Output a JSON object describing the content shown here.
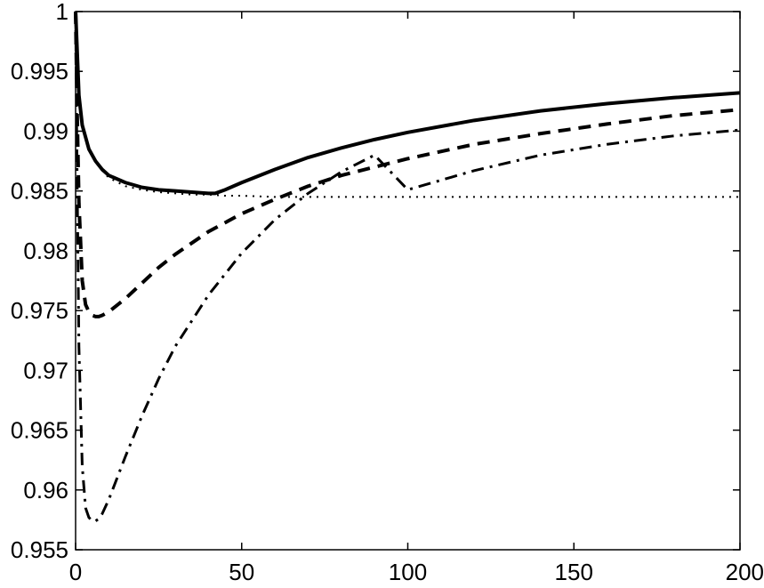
{
  "chart_data": {
    "type": "line",
    "title": "",
    "xlabel": "",
    "ylabel": "",
    "xlim": [
      0,
      200
    ],
    "ylim": [
      0.955,
      1.0
    ],
    "grid": false,
    "legend": "none",
    "x_ticks": [
      0,
      50,
      100,
      150,
      200
    ],
    "x_tick_labels": [
      "0",
      "50",
      "100",
      "150",
      "200"
    ],
    "y_ticks": [
      0.955,
      0.96,
      0.965,
      0.97,
      0.975,
      0.98,
      0.985,
      0.99,
      0.995,
      1.0
    ],
    "y_tick_labels": [
      "0.955",
      "0.96",
      "0.965",
      "0.97",
      "0.975",
      "0.98",
      "0.985",
      "0.99",
      "0.995",
      "1"
    ],
    "series": [
      {
        "style": "solid",
        "color": "#000000",
        "x": [
          0,
          1,
          2,
          4,
          6,
          8,
          10,
          15,
          20,
          25,
          30,
          35,
          40,
          42,
          45,
          50,
          60,
          70,
          80,
          90,
          100,
          120,
          140,
          160,
          180,
          200
        ],
        "y": [
          1.0,
          0.993,
          0.9905,
          0.9885,
          0.9875,
          0.9868,
          0.9863,
          0.9857,
          0.9853,
          0.9851,
          0.985,
          0.9849,
          0.9848,
          0.9848,
          0.9851,
          0.9857,
          0.9868,
          0.9878,
          0.9886,
          0.9893,
          0.9899,
          0.9909,
          0.9917,
          0.9923,
          0.9928,
          0.9932
        ]
      },
      {
        "style": "dashed",
        "color": "#000000",
        "x": [
          0,
          0.5,
          1,
          2,
          3,
          4,
          5,
          6,
          7,
          8,
          10,
          15,
          20,
          25,
          30,
          40,
          50,
          60,
          70,
          80,
          100,
          120,
          140,
          160,
          180,
          200
        ],
        "y": [
          1.0,
          0.991,
          0.984,
          0.9775,
          0.9755,
          0.9749,
          0.9746,
          0.9745,
          0.9745,
          0.9746,
          0.9749,
          0.976,
          0.9773,
          0.9786,
          0.9797,
          0.9816,
          0.9831,
          0.9843,
          0.9854,
          0.9863,
          0.9877,
          0.9889,
          0.9898,
          0.9906,
          0.9913,
          0.9918
        ]
      },
      {
        "style": "dashdot",
        "color": "#000000",
        "x": [
          0,
          0.5,
          1,
          2,
          3,
          4,
          5,
          6,
          7,
          8,
          10,
          15,
          20,
          25,
          30,
          40,
          50,
          60,
          70,
          80,
          90,
          100,
          120,
          140,
          160,
          180,
          200
        ],
        "y": [
          1.0,
          0.985,
          0.972,
          0.962,
          0.9585,
          0.9577,
          0.9574,
          0.9574,
          0.9576,
          0.958,
          0.9592,
          0.9628,
          0.9662,
          0.9693,
          0.972,
          0.9763,
          0.9798,
          0.9826,
          0.9848,
          0.9866,
          0.988,
          0.9851,
          0.9867,
          0.988,
          0.9889,
          0.9896,
          0.9901
        ]
      },
      {
        "style": "dotted",
        "color": "#000000",
        "x": [
          0,
          1,
          2,
          4,
          6,
          8,
          10,
          15,
          20,
          25,
          30,
          35,
          40,
          45,
          50,
          60,
          80,
          100,
          120,
          140,
          160,
          180,
          200
        ],
        "y": [
          1.0,
          0.993,
          0.9905,
          0.9885,
          0.9875,
          0.9867,
          0.9861,
          0.9854,
          0.9851,
          0.9849,
          0.9848,
          0.9847,
          0.9847,
          0.9846,
          0.9846,
          0.9845,
          0.9845,
          0.9845,
          0.9845,
          0.9845,
          0.9845,
          0.9845,
          0.9845
        ]
      }
    ]
  }
}
